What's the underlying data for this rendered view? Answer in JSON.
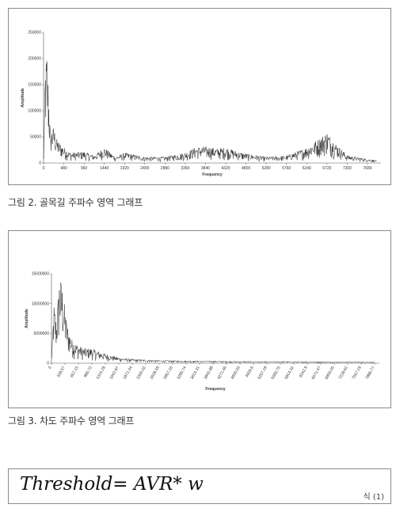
{
  "charts": {
    "fig2": {
      "caption": "그림 2. 골목길 주파수 영역 그래프",
      "chart_data": {
        "type": "line",
        "xlabel": "Frequency",
        "ylabel": "Amplitude",
        "xlim": [
          0,
          8000
        ],
        "ylim": [
          0,
          250000
        ],
        "x_ticks": [
          "0",
          "480",
          "960",
          "1440",
          "1920",
          "2400",
          "2880",
          "3360",
          "3840",
          "4320",
          "4800",
          "5280",
          "5760",
          "6240",
          "6720",
          "7200",
          "7680"
        ],
        "y_ticks": [
          "0",
          "50000",
          "100000",
          "150000",
          "200000",
          "250000"
        ],
        "series": [
          {
            "x": [
              0,
              40,
              80,
              120,
              160,
              240,
              320,
              480,
              640,
              960,
              1200,
              1440,
              1700,
              1920,
              2400,
              2880,
              3360,
              3600,
              3840,
              4100,
              4320,
              4600,
              4800,
              5280,
              5760,
              6000,
              6240,
              6500,
              6720,
              6900,
              7200,
              7680,
              7900
            ],
            "y": [
              10000,
              190000,
              215000,
              140000,
              60000,
              70000,
              45000,
              30000,
              20000,
              22000,
              15000,
              30000,
              12000,
              20000,
              12000,
              12000,
              20000,
              30000,
              32000,
              28000,
              30000,
              22000,
              18000,
              12000,
              14000,
              22000,
              30000,
              45000,
              60000,
              40000,
              15000,
              8000,
              5000
            ]
          }
        ]
      }
    },
    "fig3": {
      "caption": "그림 3. 차도 주파수 영역 그래프",
      "chart_data": {
        "type": "line",
        "xlabel": "Frequency",
        "ylabel": "Amplitude",
        "xlim": [
          0,
          8000
        ],
        "ylim": [
          0,
          15000000
        ],
        "x_ticks": [
          "0",
          "328.57",
          "657.15",
          "985.72",
          "1314.29",
          "1642.87",
          "1971.44",
          "2300.02",
          "2628.59",
          "2957.16",
          "3285.74",
          "3614.31",
          "3942.88",
          "4271.46",
          "4600.03",
          "4928.6",
          "5257.18",
          "5585.75",
          "5914.32",
          "6242.9",
          "6571.47",
          "6900.05",
          "7228.62",
          "7557.19",
          "7885.77"
        ],
        "y_ticks": [
          "0",
          "5000000",
          "10000000",
          "15000000"
        ],
        "series": [
          {
            "x": [
              0,
              60,
              120,
              200,
              280,
              330,
              400,
              500,
              650,
              800,
              985,
              1150,
              1314,
              1500,
              1700,
              1971,
              2300,
              2629,
              3000,
              3614,
              4271,
              4929,
              5586,
              6243,
              6900,
              7557,
              7886
            ],
            "y": [
              1000000,
              10000000,
              7000000,
              15000000,
              12500000,
              9000000,
              6000000,
              4000000,
              3000000,
              2500000,
              2500000,
              2000000,
              1600000,
              1200000,
              900000,
              700000,
              600000,
              500000,
              450000,
              400000,
              350000,
              300000,
              300000,
              280000,
              250000,
              250000,
              200000
            ]
          }
        ]
      }
    }
  },
  "formula": {
    "text": "Threshold= AVR* w",
    "number": "식 (1)"
  }
}
